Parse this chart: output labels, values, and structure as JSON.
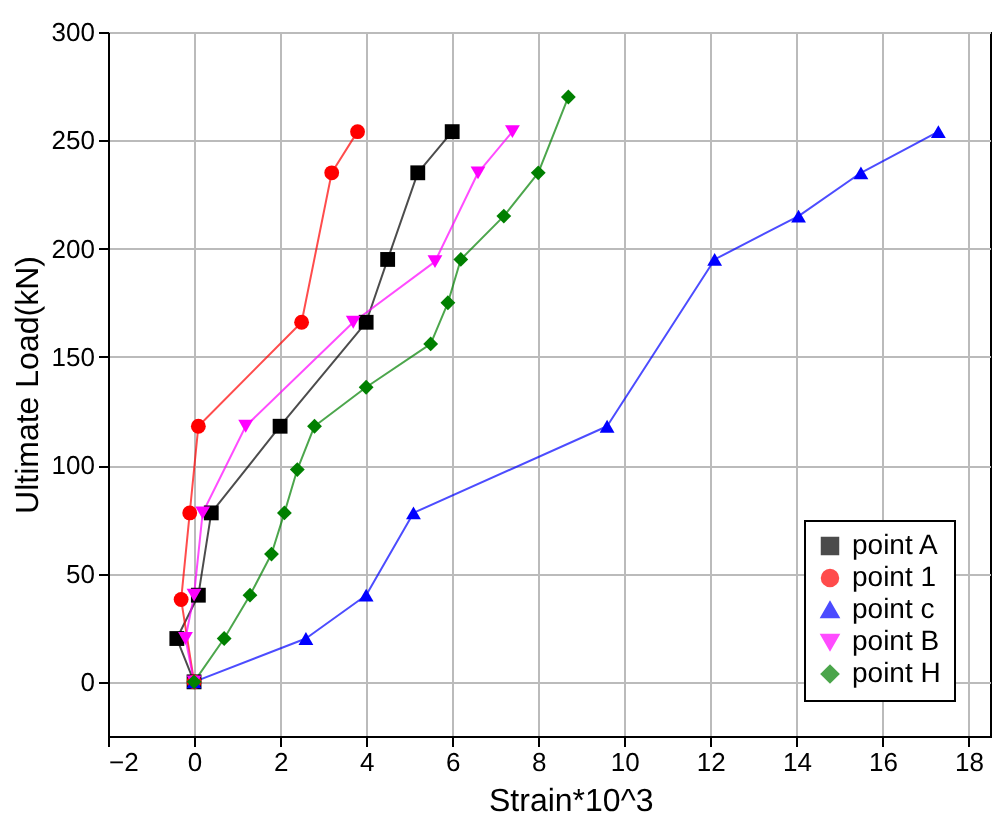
{
  "chart_data": {
    "type": "line",
    "xlabel": "Strain*10^3",
    "ylabel": "Ultimate Load(kN)",
    "xlim": [
      -2,
      18.5
    ],
    "ylim": [
      -25,
      300
    ],
    "xticks": [
      -2,
      0,
      2,
      4,
      6,
      8,
      10,
      12,
      14,
      16,
      18
    ],
    "yticks": [
      0,
      50,
      100,
      150,
      200,
      250,
      300
    ],
    "grid": true,
    "legend": "bottom right",
    "line_style": "solid",
    "series": [
      {
        "name": "point A",
        "color": "#000000",
        "marker": "square",
        "x": [
          0,
          -0.4,
          0.1,
          0.4,
          2,
          4,
          4.5,
          5.2,
          6
        ],
        "values": [
          0,
          20,
          40,
          78,
          118,
          166,
          195,
          235,
          254
        ]
      },
      {
        "name": "point 1",
        "color": "#ff0000",
        "marker": "circle",
        "x": [
          0,
          -0.3,
          -0.1,
          0.1,
          2.5,
          3.2,
          3.8
        ],
        "values": [
          0,
          38,
          78,
          118,
          166,
          235,
          254
        ]
      },
      {
        "name": "point c",
        "color": "#0000ff",
        "marker": "triangle",
        "x": [
          0,
          2.6,
          4,
          5.1,
          9.6,
          12.1,
          14.05,
          15.5,
          17.3
        ],
        "values": [
          0,
          20,
          40,
          78,
          118,
          195,
          215,
          235,
          254
        ]
      },
      {
        "name": "point B",
        "color": "#ff00ff",
        "marker": "triangle-down",
        "x": [
          0,
          -0.2,
          0,
          0.2,
          1.2,
          3.7,
          5.6,
          6.6,
          7.4
        ],
        "values": [
          0,
          20,
          40,
          78,
          118,
          166,
          194,
          235,
          254
        ]
      },
      {
        "name": "point H",
        "color": "#008000",
        "marker": "diamond",
        "x": [
          0,
          0.7,
          1.3,
          1.8,
          2.1,
          2.4,
          2.8,
          4,
          5.5,
          5.9,
          6.2,
          7.2,
          8,
          8.7
        ],
        "values": [
          0,
          20,
          40,
          59,
          78,
          98,
          118,
          136,
          156,
          175,
          195,
          215,
          235,
          270
        ]
      }
    ]
  }
}
